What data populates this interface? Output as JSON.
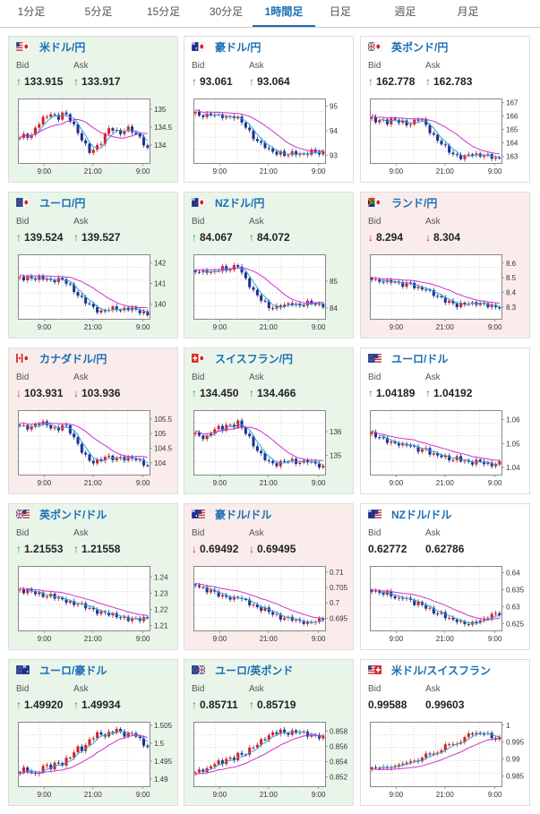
{
  "tabs": [
    {
      "label": "1分足",
      "active": false
    },
    {
      "label": "5分足",
      "active": false
    },
    {
      "label": "15分足",
      "active": false
    },
    {
      "label": "30分足",
      "active": false
    },
    {
      "label": "1時間足",
      "active": true
    },
    {
      "label": "日足",
      "active": false
    },
    {
      "label": "週足",
      "active": false
    },
    {
      "label": "月足",
      "active": false
    }
  ],
  "labels": {
    "bid": "Bid",
    "ask": "Ask"
  },
  "x_tick_labels": [
    "9:00",
    "21:00",
    "9:00"
  ],
  "colors": {
    "up_candle": "#d62020",
    "down_candle": "#1f2f8f",
    "ma_short": "#2aa7d8",
    "ma_long": "#cc33cc",
    "up_arrow": "#1b9e3e",
    "down_arrow": "#d43030",
    "link": "#1a6fb5"
  },
  "pairs": [
    {
      "name": "米ドル/円",
      "flag": "us-jp-flag-icon",
      "bg": "up",
      "bid": "133.915",
      "ask": "133.917",
      "bid_dir": "up",
      "ask_dir": "up",
      "yticks": [
        "135",
        "134.5",
        "134"
      ],
      "ylim": [
        133.5,
        135.3
      ],
      "curve": [
        134.2,
        134.3,
        134.2,
        134.5,
        134.7,
        134.8,
        134.9,
        134.7,
        134.9,
        134.8,
        134.6,
        134.3,
        134.1,
        133.8,
        133.9,
        134.0,
        134.3,
        134.5,
        134.4,
        134.3,
        134.5,
        134.4,
        134.3,
        134.1,
        133.9
      ]
    },
    {
      "name": "豪ドル/円",
      "flag": "au-jp-flag-icon",
      "bg": "flat",
      "bid": "93.061",
      "ask": "93.064",
      "bid_dir": "up",
      "ask_dir": "up",
      "yticks": [
        "95",
        "94",
        "93"
      ],
      "ylim": [
        92.7,
        95.3
      ],
      "curve": [
        94.7,
        94.6,
        94.6,
        94.7,
        94.6,
        94.6,
        94.5,
        94.6,
        94.5,
        94.3,
        94.0,
        93.7,
        93.5,
        93.4,
        93.2,
        93.1,
        93.1,
        93.0,
        93.1,
        93.1,
        93.0,
        93.1,
        93.2,
        93.1,
        93.1
      ]
    },
    {
      "name": "英ポンド/円",
      "flag": "gb-jp-flag-icon",
      "bg": "flat",
      "bid": "162.778",
      "ask": "162.783",
      "bid_dir": "up",
      "ask_dir": "up",
      "yticks": [
        "167",
        "166",
        "165",
        "164",
        "163"
      ],
      "ylim": [
        162.5,
        167.3
      ],
      "curve": [
        165.8,
        165.6,
        165.7,
        165.5,
        165.8,
        165.6,
        165.5,
        165.3,
        165.6,
        165.9,
        165.4,
        164.8,
        164.3,
        164.0,
        163.6,
        163.2,
        163.0,
        162.9,
        163.1,
        163.2,
        163.0,
        163.1,
        163.0,
        162.9,
        162.8
      ]
    },
    {
      "name": "ユーロ/円",
      "flag": "eu-jp-flag-icon",
      "bg": "up",
      "bid": "139.524",
      "ask": "139.527",
      "bid_dir": "up",
      "ask_dir": "up",
      "yticks": [
        "142",
        "141",
        "140"
      ],
      "ylim": [
        139.3,
        142.4
      ],
      "curve": [
        141.3,
        141.2,
        141.3,
        141.2,
        141.3,
        141.2,
        141.1,
        141.2,
        141.2,
        141.0,
        140.7,
        140.4,
        140.2,
        140.0,
        139.8,
        139.6,
        139.7,
        139.8,
        139.8,
        139.7,
        139.8,
        139.8,
        139.7,
        139.6,
        139.5
      ]
    },
    {
      "name": "NZドル/円",
      "flag": "nz-jp-flag-icon",
      "bg": "up",
      "bid": "84.067",
      "ask": "84.072",
      "bid_dir": "up",
      "ask_dir": "up",
      "yticks": [
        "85",
        "84"
      ],
      "ylim": [
        83.6,
        86.0
      ],
      "curve": [
        85.4,
        85.3,
        85.4,
        85.3,
        85.4,
        85.5,
        85.4,
        85.5,
        85.6,
        85.2,
        84.9,
        84.6,
        84.4,
        84.2,
        84.0,
        84.0,
        84.1,
        84.1,
        84.2,
        84.1,
        84.1,
        84.2,
        84.2,
        84.1,
        84.1
      ]
    },
    {
      "name": "ランド/円",
      "flag": "za-jp-flag-icon",
      "bg": "down",
      "bid": "8.294",
      "ask": "8.304",
      "bid_dir": "down",
      "ask_dir": "down",
      "yticks": [
        "8.6",
        "8.5",
        "8.4",
        "8.3"
      ],
      "ylim": [
        8.22,
        8.66
      ],
      "curve": [
        8.5,
        8.47,
        8.48,
        8.47,
        8.48,
        8.46,
        8.45,
        8.47,
        8.44,
        8.42,
        8.43,
        8.4,
        8.38,
        8.36,
        8.34,
        8.33,
        8.31,
        8.32,
        8.33,
        8.32,
        8.33,
        8.32,
        8.31,
        8.3,
        8.3
      ]
    },
    {
      "name": "カナダドル/円",
      "flag": "ca-jp-flag-icon",
      "bg": "down",
      "bid": "103.931",
      "ask": "103.936",
      "bid_dir": "down",
      "ask_dir": "down",
      "yticks": [
        "105.5",
        "105",
        "104.5",
        "104"
      ],
      "ylim": [
        103.6,
        105.8
      ],
      "curve": [
        105.3,
        105.2,
        105.2,
        105.3,
        105.4,
        105.3,
        105.2,
        105.1,
        105.3,
        105.2,
        104.9,
        104.6,
        104.3,
        104.1,
        104.0,
        104.1,
        104.2,
        104.2,
        104.1,
        104.2,
        104.1,
        104.2,
        104.1,
        104.0,
        103.9
      ]
    },
    {
      "name": "スイスフラン/円",
      "flag": "ch-jp-flag-icon",
      "bg": "up",
      "bid": "134.450",
      "ask": "134.466",
      "bid_dir": "up",
      "ask_dir": "up",
      "yticks": [
        "136",
        "135"
      ],
      "ylim": [
        134.2,
        136.9
      ],
      "curve": [
        135.9,
        135.8,
        135.7,
        136.0,
        136.2,
        136.1,
        136.3,
        136.2,
        136.4,
        136.1,
        135.8,
        135.4,
        135.1,
        134.9,
        134.7,
        134.6,
        134.7,
        134.8,
        134.8,
        134.7,
        134.7,
        134.8,
        134.7,
        134.6,
        134.5
      ]
    },
    {
      "name": "ユーロ/ドル",
      "flag": "eu-us-flag-icon",
      "bg": "flat",
      "bid": "1.04189",
      "ask": "1.04192",
      "bid_dir": "up",
      "ask_dir": "up",
      "yticks": [
        "1.06",
        "1.05",
        "1.04"
      ],
      "ylim": [
        1.037,
        1.064
      ],
      "curve": [
        1.054,
        1.053,
        1.052,
        1.051,
        1.05,
        1.05,
        1.049,
        1.05,
        1.048,
        1.047,
        1.048,
        1.046,
        1.045,
        1.045,
        1.044,
        1.043,
        1.044,
        1.043,
        1.042,
        1.042,
        1.043,
        1.042,
        1.041,
        1.041,
        1.042
      ]
    },
    {
      "name": "英ポンド/ドル",
      "flag": "gb-us-flag-icon",
      "bg": "up",
      "bid": "1.21553",
      "ask": "1.21558",
      "bid_dir": "up",
      "ask_dir": "up",
      "yticks": [
        "1.24",
        "1.23",
        "1.22",
        "1.21"
      ],
      "ylim": [
        1.207,
        1.247
      ],
      "curve": [
        1.232,
        1.231,
        1.232,
        1.23,
        1.229,
        1.228,
        1.229,
        1.227,
        1.226,
        1.225,
        1.223,
        1.224,
        1.222,
        1.221,
        1.219,
        1.218,
        1.218,
        1.217,
        1.216,
        1.215,
        1.214,
        1.214,
        1.214,
        1.214,
        1.215
      ]
    },
    {
      "name": "豪ドル/ドル",
      "flag": "au-us-flag-icon",
      "bg": "down",
      "bid": "0.69492",
      "ask": "0.69495",
      "bid_dir": "down",
      "ask_dir": "down",
      "yticks": [
        "0.71",
        "0.705",
        "0.7",
        "0.695"
      ],
      "ylim": [
        0.691,
        0.712
      ],
      "curve": [
        0.706,
        0.705,
        0.704,
        0.704,
        0.703,
        0.702,
        0.702,
        0.701,
        0.702,
        0.701,
        0.7,
        0.699,
        0.698,
        0.698,
        0.697,
        0.696,
        0.695,
        0.695,
        0.695,
        0.694,
        0.694,
        0.693,
        0.694,
        0.694,
        0.695
      ]
    },
    {
      "name": "NZドル/ドル",
      "flag": "nz-us-flag-icon",
      "bg": "flat",
      "bid": "0.62772",
      "ask": "0.62786",
      "bid_dir": "none",
      "ask_dir": "none",
      "yticks": [
        "0.64",
        "0.635",
        "0.63",
        "0.625"
      ],
      "ylim": [
        0.623,
        0.642
      ],
      "curve": [
        0.635,
        0.634,
        0.634,
        0.634,
        0.633,
        0.632,
        0.633,
        0.632,
        0.631,
        0.631,
        0.63,
        0.629,
        0.628,
        0.628,
        0.627,
        0.626,
        0.626,
        0.625,
        0.625,
        0.625,
        0.626,
        0.626,
        0.627,
        0.628,
        0.628
      ]
    },
    {
      "name": "ユーロ/豪ドル",
      "flag": "eu-au-flag-icon",
      "bg": "up",
      "bid": "1.49920",
      "ask": "1.49934",
      "bid_dir": "up",
      "ask_dir": "up",
      "yticks": [
        "1.505",
        "1.5",
        "1.495",
        "1.49"
      ],
      "ylim": [
        1.488,
        1.506
      ],
      "curve": [
        1.492,
        1.493,
        1.492,
        1.491,
        1.493,
        1.494,
        1.493,
        1.495,
        1.494,
        1.496,
        1.497,
        1.499,
        1.498,
        1.501,
        1.502,
        1.503,
        1.502,
        1.503,
        1.504,
        1.503,
        1.502,
        1.503,
        1.502,
        1.5,
        1.499
      ]
    },
    {
      "name": "ユーロ/英ポンド",
      "flag": "eu-gb-flag-icon",
      "bg": "up",
      "bid": "0.85711",
      "ask": "0.85719",
      "bid_dir": "up",
      "ask_dir": "up",
      "yticks": [
        "0.858",
        "0.856",
        "0.854",
        "0.852"
      ],
      "ylim": [
        0.8508,
        0.8592
      ],
      "curve": [
        0.8525,
        0.853,
        0.8528,
        0.8535,
        0.854,
        0.8538,
        0.8545,
        0.8542,
        0.855,
        0.8548,
        0.8555,
        0.856,
        0.8565,
        0.857,
        0.8575,
        0.8578,
        0.858,
        0.8576,
        0.8578,
        0.858,
        0.8578,
        0.8575,
        0.8574,
        0.8573,
        0.8572
      ]
    },
    {
      "name": "米ドル/スイスフラン",
      "flag": "us-ch-flag-icon",
      "bg": "flat",
      "bid": "0.99588",
      "ask": "0.99603",
      "bid_dir": "none",
      "ask_dir": "none",
      "yticks": [
        "1",
        "0.995",
        "0.99",
        "0.985"
      ],
      "ylim": [
        0.982,
        1.001
      ],
      "curve": [
        0.987,
        0.988,
        0.987,
        0.988,
        0.987,
        0.989,
        0.988,
        0.99,
        0.989,
        0.99,
        0.991,
        0.992,
        0.991,
        0.993,
        0.994,
        0.995,
        0.994,
        0.996,
        0.997,
        0.998,
        0.997,
        0.998,
        0.997,
        0.996,
        0.996
      ]
    }
  ]
}
